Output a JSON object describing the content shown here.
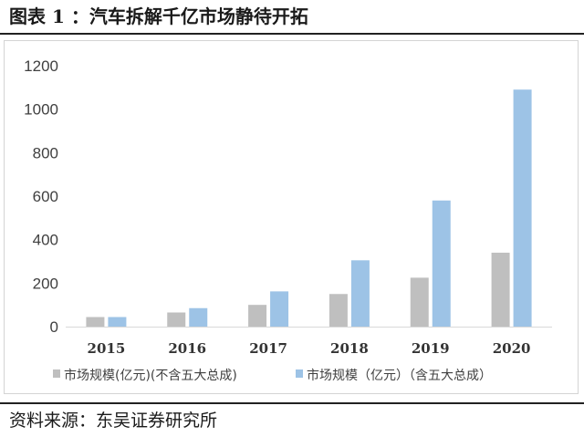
{
  "figure_title": "图表 1 ：汽车拆解千亿市场静待开拓",
  "source_text": "资料来源：东吴证券研究所",
  "colors": {
    "series1": "#bfbfbf",
    "series2": "#9dc3e6",
    "axis": "#d9d9d9",
    "text": "#404040"
  },
  "chart_data": {
    "type": "bar",
    "title": "",
    "xlabel": "",
    "ylabel": "",
    "categories": [
      "2015",
      "2016",
      "2017",
      "2018",
      "2019",
      "2020"
    ],
    "ylim": [
      0,
      1200
    ],
    "yticks": [
      "0",
      "200",
      "400",
      "600",
      "800",
      "1000",
      "1200"
    ],
    "grid": false,
    "legend_position": "bottom",
    "series": [
      {
        "name": "市场规模(亿元)(不含五大总成)",
        "values": [
          44,
          65,
          100,
          150,
          225,
          340
        ]
      },
      {
        "name": "市场规模（亿元）（含五大总成）",
        "values": [
          44,
          85,
          162,
          305,
          580,
          1090
        ]
      }
    ]
  }
}
